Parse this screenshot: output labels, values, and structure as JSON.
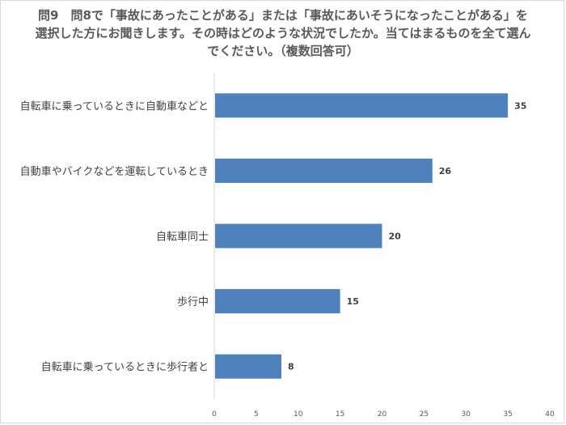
{
  "chart_data": {
    "type": "bar",
    "orientation": "horizontal",
    "title": "問9　問8で「事故にあったことがある」または「事故にあいそうになったことがある」を選択した方にお聞きします。その時はどのような状況でしたか。当てはまるものを全て選んでください。（複数回答可）",
    "categories": [
      "自転車に乗っているときに自動車などと",
      "自動車やバイクなどを運転しているとき",
      "自転車同士",
      "歩行中",
      "自転車に乗っているときに歩行者と"
    ],
    "values": [
      35,
      26,
      20,
      15,
      8
    ],
    "xlim": [
      0,
      40
    ],
    "xticks": [
      "0",
      "5",
      "10",
      "15",
      "20",
      "25",
      "30",
      "35",
      "40"
    ],
    "grid": false,
    "legend": "none",
    "bar_color": "#4f81bd"
  }
}
